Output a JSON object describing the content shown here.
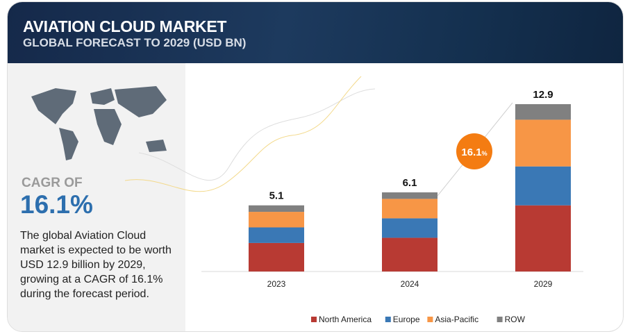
{
  "header": {
    "title": "AVIATION CLOUD  MARKET",
    "subtitle": "GLOBAL FORECAST TO 2029 (USD BN)"
  },
  "summary": {
    "cagr_label": "CAGR OF",
    "cagr_value": "16.1%",
    "description": "The global Aviation Cloud market is expected to be worth USD 12.9 billion by 2029, growing at a CAGR of 16.1% during the forecast period."
  },
  "badge": {
    "value": "16.1",
    "unit": "%"
  },
  "colors": {
    "North America": "#b83a33",
    "Europe": "#3a78b5",
    "Asia-Pacific": "#f79646",
    "ROW": "#808080",
    "badge": "#f47c12"
  },
  "chart_data": {
    "type": "bar",
    "stacked": true,
    "title": "Aviation Cloud Market, Global Forecast to 2029 (USD BN)",
    "categories": [
      "2023",
      "2024",
      "2029"
    ],
    "totals": [
      "5.1",
      "6.1",
      "12.9"
    ],
    "series": [
      {
        "name": "North America",
        "values": [
          2.2,
          2.6,
          5.1
        ]
      },
      {
        "name": "Europe",
        "values": [
          1.2,
          1.5,
          3.0
        ]
      },
      {
        "name": "Asia-Pacific",
        "values": [
          1.2,
          1.5,
          3.6
        ]
      },
      {
        "name": "ROW",
        "values": [
          0.5,
          0.5,
          1.2
        ]
      }
    ],
    "ylim": [
      0,
      14
    ],
    "legend": "bottom"
  }
}
